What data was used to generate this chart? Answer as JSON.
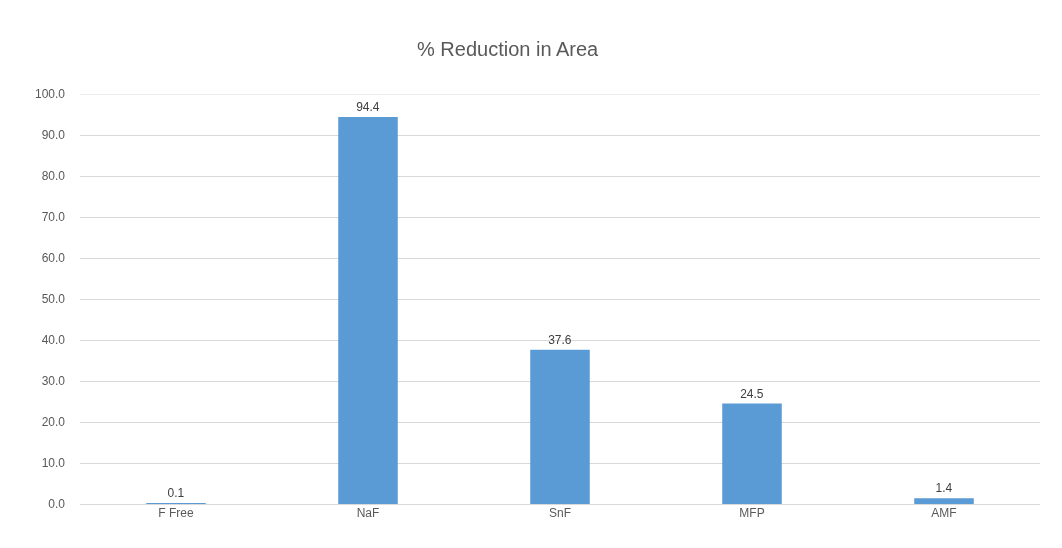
{
  "chart_data": {
    "type": "bar",
    "title": "% Reduction in Area",
    "categories": [
      "F Free",
      "NaF",
      "SnF",
      "MFP",
      "AMF"
    ],
    "values": [
      0.1,
      94.4,
      37.6,
      24.5,
      1.4
    ],
    "color": "#5b9bd5",
    "ylim": [
      0,
      100
    ],
    "yticks": [
      {
        "value": 0,
        "label": "0.0"
      },
      {
        "value": 10,
        "label": "10.0"
      },
      {
        "value": 20,
        "label": "20.0"
      },
      {
        "value": 30,
        "label": "30.0"
      },
      {
        "value": 40,
        "label": "40.0"
      },
      {
        "value": 50,
        "label": "50.0"
      },
      {
        "value": 60,
        "label": "60.0"
      },
      {
        "value": 70,
        "label": "70.0"
      },
      {
        "value": 80,
        "label": "80.0"
      },
      {
        "value": 90,
        "label": "90.0"
      },
      {
        "value": 100,
        "label": "100.0"
      }
    ],
    "grid": "y",
    "data_labels": true
  }
}
